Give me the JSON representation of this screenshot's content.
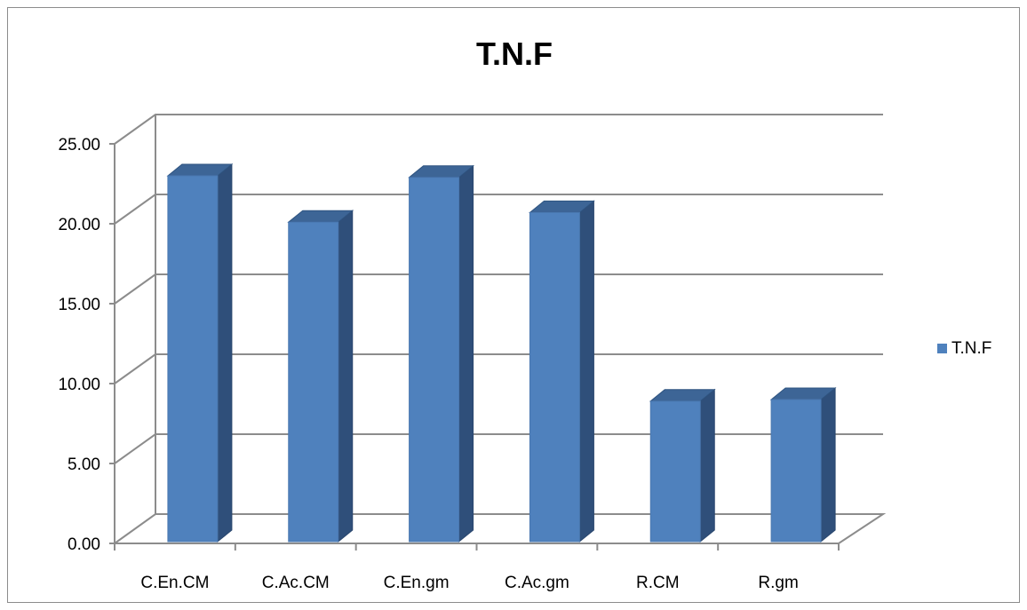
{
  "chart_data": {
    "type": "bar",
    "title": "T.N.F",
    "xlabel": "",
    "ylabel": "",
    "categories": [
      "C.En.CM",
      "C.Ac.CM",
      "C.En.gm",
      "C.Ac.gm",
      "R.CM",
      "R.gm"
    ],
    "series": [
      {
        "name": "T.N.F",
        "values": [
          23.0,
          20.1,
          22.9,
          20.7,
          8.9,
          9.0
        ],
        "color": "#4f81bd"
      }
    ],
    "ylim": [
      0,
      25
    ],
    "yticks": [
      "0.00",
      "5.00",
      "10.00",
      "15.00",
      "20.00",
      "25.00"
    ],
    "grid": true,
    "legend_position": "right",
    "style": "3d-bar"
  }
}
